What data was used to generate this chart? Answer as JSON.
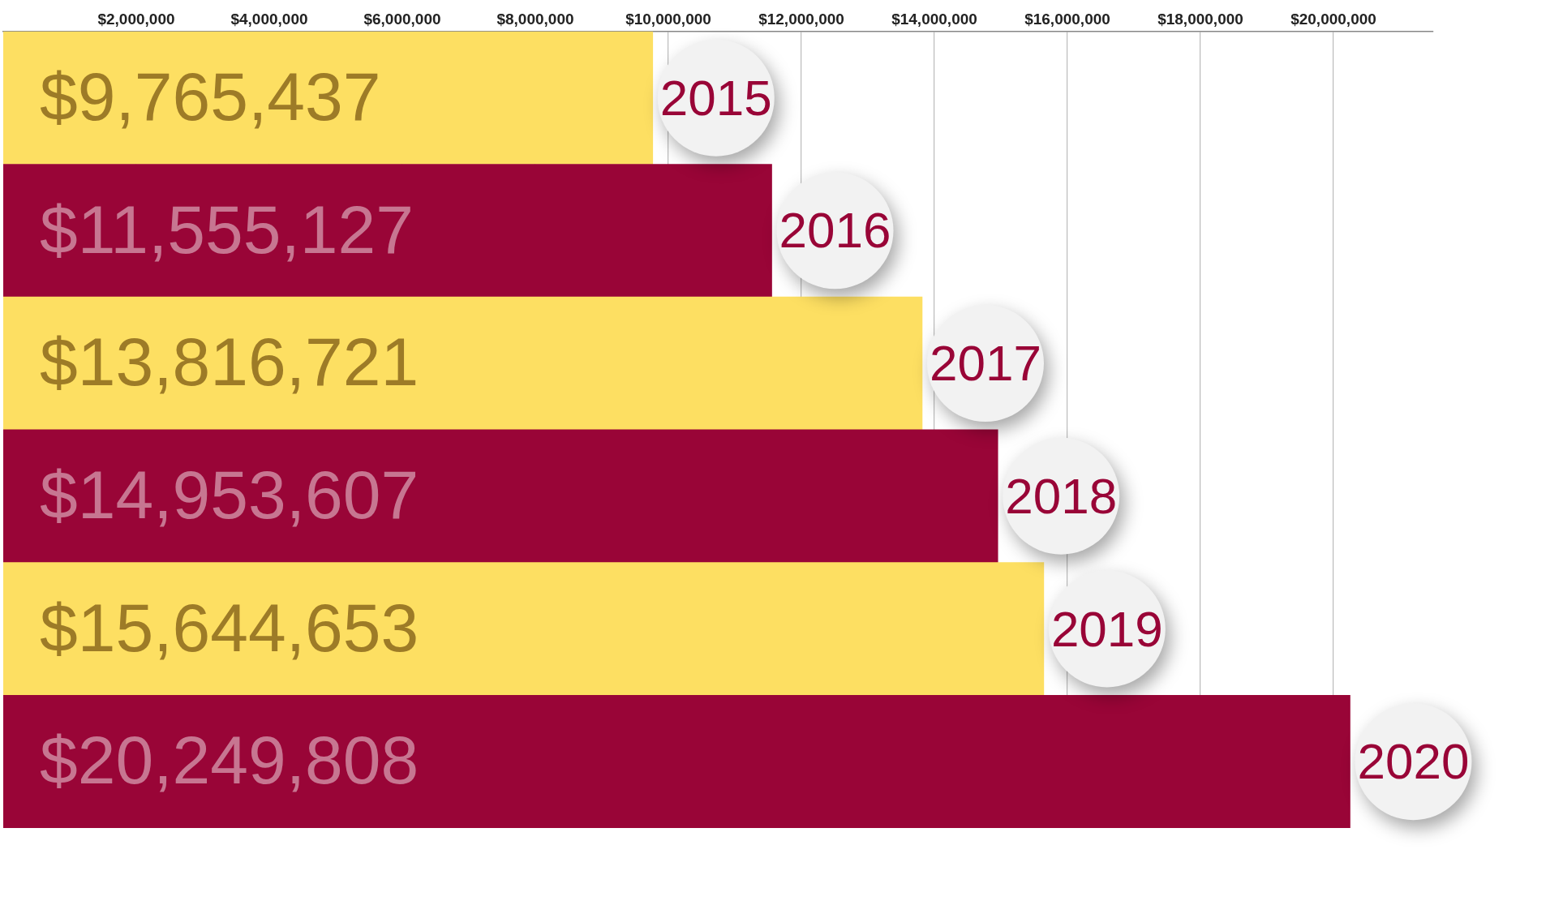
{
  "chart_data": {
    "type": "bar",
    "orientation": "horizontal",
    "categories": [
      "2015",
      "2016",
      "2017",
      "2018",
      "2019",
      "2020"
    ],
    "values": [
      9765437,
      11555127,
      13816721,
      14953607,
      15644653,
      20249808
    ],
    "colors": [
      "#fddf62",
      "#990537",
      "#fddf62",
      "#990537",
      "#fddf62",
      "#990537"
    ],
    "value_labels": [
      "$9,765,437",
      "$11,555,127",
      "$13,816,721",
      "$14,953,607",
      "$15,644,653",
      "$20,249,808"
    ],
    "xlim": [
      0,
      21500000
    ],
    "xticks": [
      {
        "value": 2000000,
        "label": "$2,000,000"
      },
      {
        "value": 4000000,
        "label": "$4,000,000"
      },
      {
        "value": 6000000,
        "label": "$6,000,000"
      },
      {
        "value": 8000000,
        "label": "$8,000,000"
      },
      {
        "value": 10000000,
        "label": "$10,000,000"
      },
      {
        "value": 12000000,
        "label": "$12,000,000"
      },
      {
        "value": 14000000,
        "label": "$14,000,000"
      },
      {
        "value": 16000000,
        "label": "$16,000,000"
      },
      {
        "value": 18000000,
        "label": "$18,000,000"
      },
      {
        "value": 20000000,
        "label": "$20,000,000"
      }
    ],
    "grid": "x",
    "legend": false
  }
}
